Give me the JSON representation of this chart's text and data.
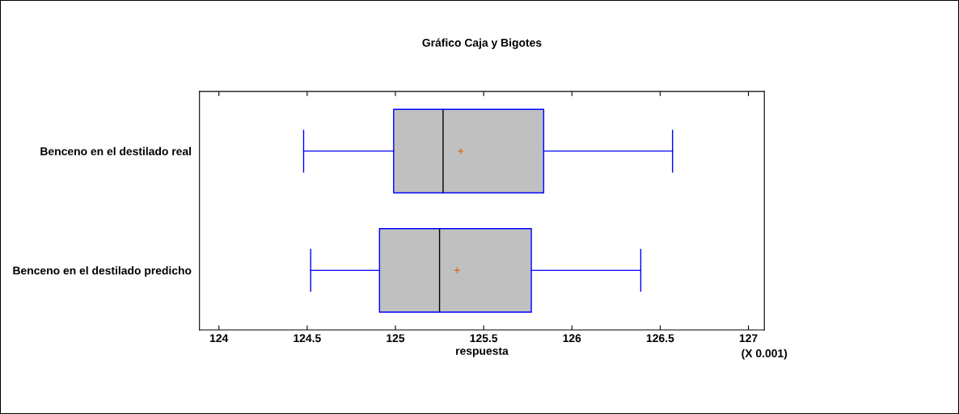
{
  "chart_data": {
    "type": "box",
    "orientation": "horizontal",
    "title": "Gráfico Caja y Bigotes",
    "xlabel": "respuesta",
    "categories": [
      "Benceno en el destilado real",
      "Benceno en el destilado predicho"
    ],
    "boxes": [
      {
        "low": 124.48,
        "q1": 124.99,
        "median": 125.27,
        "q3": 125.84,
        "high": 126.57,
        "mean": 125.37
      },
      {
        "low": 124.52,
        "q1": 124.91,
        "median": 125.25,
        "q3": 125.77,
        "high": 126.39,
        "mean": 125.35
      }
    ],
    "color": "#c0c0c0",
    "xlim": [
      123.89,
      127.09
    ],
    "xticks": [
      124,
      124.5,
      125,
      125.5,
      126,
      126.5,
      127
    ],
    "annotations": [
      "(X 0.001)"
    ]
  }
}
